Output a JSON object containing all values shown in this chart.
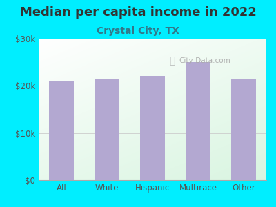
{
  "title": "Median per capita income in 2022",
  "subtitle": "Crystal City, TX",
  "categories": [
    "All",
    "White",
    "Hispanic",
    "Multirace",
    "Other"
  ],
  "values": [
    21000,
    21500,
    22000,
    25000,
    21500
  ],
  "bar_color": "#b3a8d1",
  "bg_outer": "#00eeff",
  "bg_gradient_top": "#f0faf0",
  "bg_gradient_bottom": "#ffffff",
  "title_fontsize": 13,
  "subtitle_fontsize": 10,
  "ylim": [
    0,
    30000
  ],
  "yticks": [
    0,
    10000,
    20000,
    30000
  ],
  "ytick_labels": [
    "$0",
    "$10k",
    "$20k",
    "$30k"
  ],
  "watermark": "City-Data.com",
  "title_color": "#333333",
  "subtitle_color": "#337788",
  "tick_color": "#555555",
  "grid_color": "#cccccc",
  "spine_color": "#aaaaaa"
}
